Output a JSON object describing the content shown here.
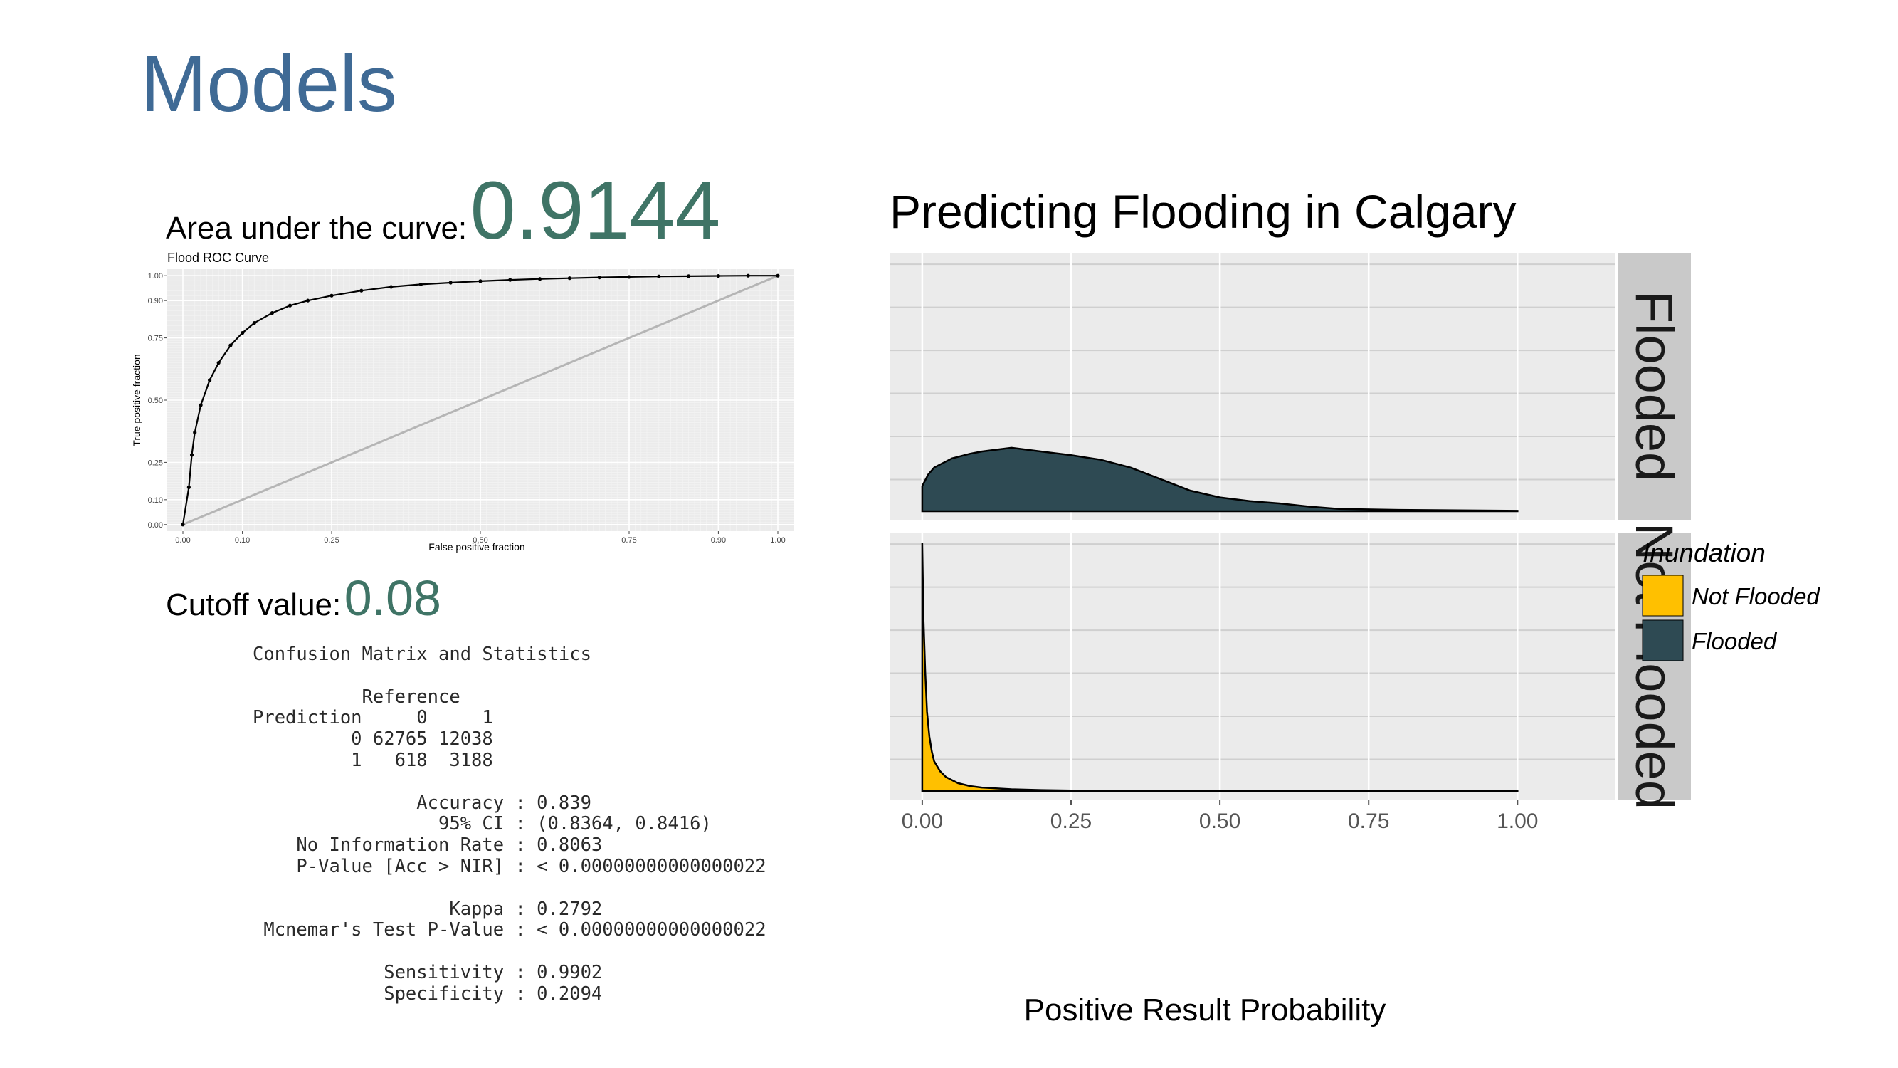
{
  "slide": {
    "title": "Models",
    "auc_label": "Area under the curve:",
    "auc_value": "0.9144",
    "cutoff_label": "Cutoff value:",
    "cutoff_value": "0.08"
  },
  "confusion_matrix": {
    "lines": [
      "Confusion Matrix and Statistics",
      "",
      "          Reference",
      "Prediction     0     1",
      "         0 62765 12038",
      "         1   618  3188",
      "",
      "               Accuracy : 0.839",
      "                 95% CI : (0.8364, 0.8416)",
      "    No Information Rate : 0.8063",
      "    P-Value [Acc > NIR] : < 0.00000000000000022",
      "",
      "                  Kappa : 0.2792",
      " Mcnemar's Test P-Value : < 0.00000000000000022",
      "",
      "            Sensitivity : 0.9902",
      "            Specificity : 0.2094"
    ]
  },
  "colors": {
    "title": "#3f6a95",
    "accent_value": "#3f7466",
    "not_flooded": "#ffc000",
    "flooded": "#2e4a53",
    "panel_bg": "#ebebeb",
    "strip_bg": "#c9c9c9"
  },
  "chart_data": [
    {
      "type": "line",
      "title": "Flood ROC Curve",
      "xlabel": "False positive fraction",
      "ylabel": "True positive fraction",
      "xlim": [
        0,
        1
      ],
      "ylim": [
        0,
        1
      ],
      "x_ticks": [
        "0.00",
        "0.10",
        "0.25",
        "0.50",
        "0.75",
        "0.90",
        "1.00"
      ],
      "y_ticks": [
        "0.00",
        "0.10",
        "0.25",
        "0.50",
        "0.75",
        "0.90",
        "1.00"
      ],
      "grid": true,
      "series": [
        {
          "x": [
            0.0,
            0.01,
            0.015,
            0.02,
            0.03,
            0.045,
            0.06,
            0.08,
            0.1,
            0.12,
            0.15,
            0.18,
            0.21,
            0.25,
            0.3,
            0.35,
            0.4,
            0.45,
            0.5,
            0.55,
            0.6,
            0.65,
            0.7,
            0.75,
            0.8,
            0.85,
            0.9,
            0.95,
            1.0
          ],
          "y": [
            0.0,
            0.15,
            0.28,
            0.37,
            0.48,
            0.58,
            0.65,
            0.72,
            0.77,
            0.81,
            0.85,
            0.88,
            0.9,
            0.92,
            0.94,
            0.955,
            0.965,
            0.972,
            0.978,
            0.983,
            0.987,
            0.99,
            0.993,
            0.995,
            0.997,
            0.998,
            0.999,
            1.0,
            1.0
          ]
        },
        {
          "x": [
            0,
            1
          ],
          "y": [
            0,
            1
          ]
        }
      ]
    },
    {
      "type": "area",
      "title": "Predicting Flooding in Calgary",
      "xlabel": "Positive Result Probability",
      "ylabel": "",
      "xlim": [
        0,
        1
      ],
      "x_ticks": [
        "0.00",
        "0.25",
        "0.50",
        "0.75",
        "1.00"
      ],
      "grid": true,
      "legend": {
        "title": "Inundation",
        "placement": "right",
        "items": [
          {
            "label": "Not Flooded",
            "color": "#ffc000"
          },
          {
            "label": "Flooded",
            "color": "#2e4a53"
          }
        ]
      },
      "facets": [
        {
          "label": "Flooded",
          "fill": "#2e4a53",
          "x": [
            0.0,
            0.01,
            0.02,
            0.05,
            0.08,
            0.1,
            0.15,
            0.2,
            0.25,
            0.3,
            0.35,
            0.4,
            0.45,
            0.5,
            0.55,
            0.6,
            0.65,
            0.7,
            0.8,
            0.9,
            1.0
          ],
          "y": [
            0.55,
            0.8,
            0.95,
            1.15,
            1.25,
            1.3,
            1.38,
            1.3,
            1.22,
            1.12,
            0.95,
            0.7,
            0.45,
            0.3,
            0.22,
            0.17,
            0.1,
            0.05,
            0.03,
            0.02,
            0.01
          ]
        },
        {
          "label": "Not Flooded",
          "fill": "#ffc000",
          "x": [
            0.0,
            0.002,
            0.005,
            0.008,
            0.012,
            0.016,
            0.02,
            0.03,
            0.04,
            0.06,
            0.08,
            0.1,
            0.15,
            0.2,
            0.25,
            0.3,
            0.5,
            0.75,
            1.0
          ],
          "y": [
            25.0,
            17.5,
            12.0,
            8.0,
            5.5,
            4.0,
            3.0,
            2.0,
            1.4,
            0.8,
            0.5,
            0.35,
            0.18,
            0.1,
            0.05,
            0.03,
            0.01,
            0.01,
            0.01
          ]
        }
      ],
      "ylim_per_facet": [
        5.5,
        25.5
      ]
    }
  ]
}
